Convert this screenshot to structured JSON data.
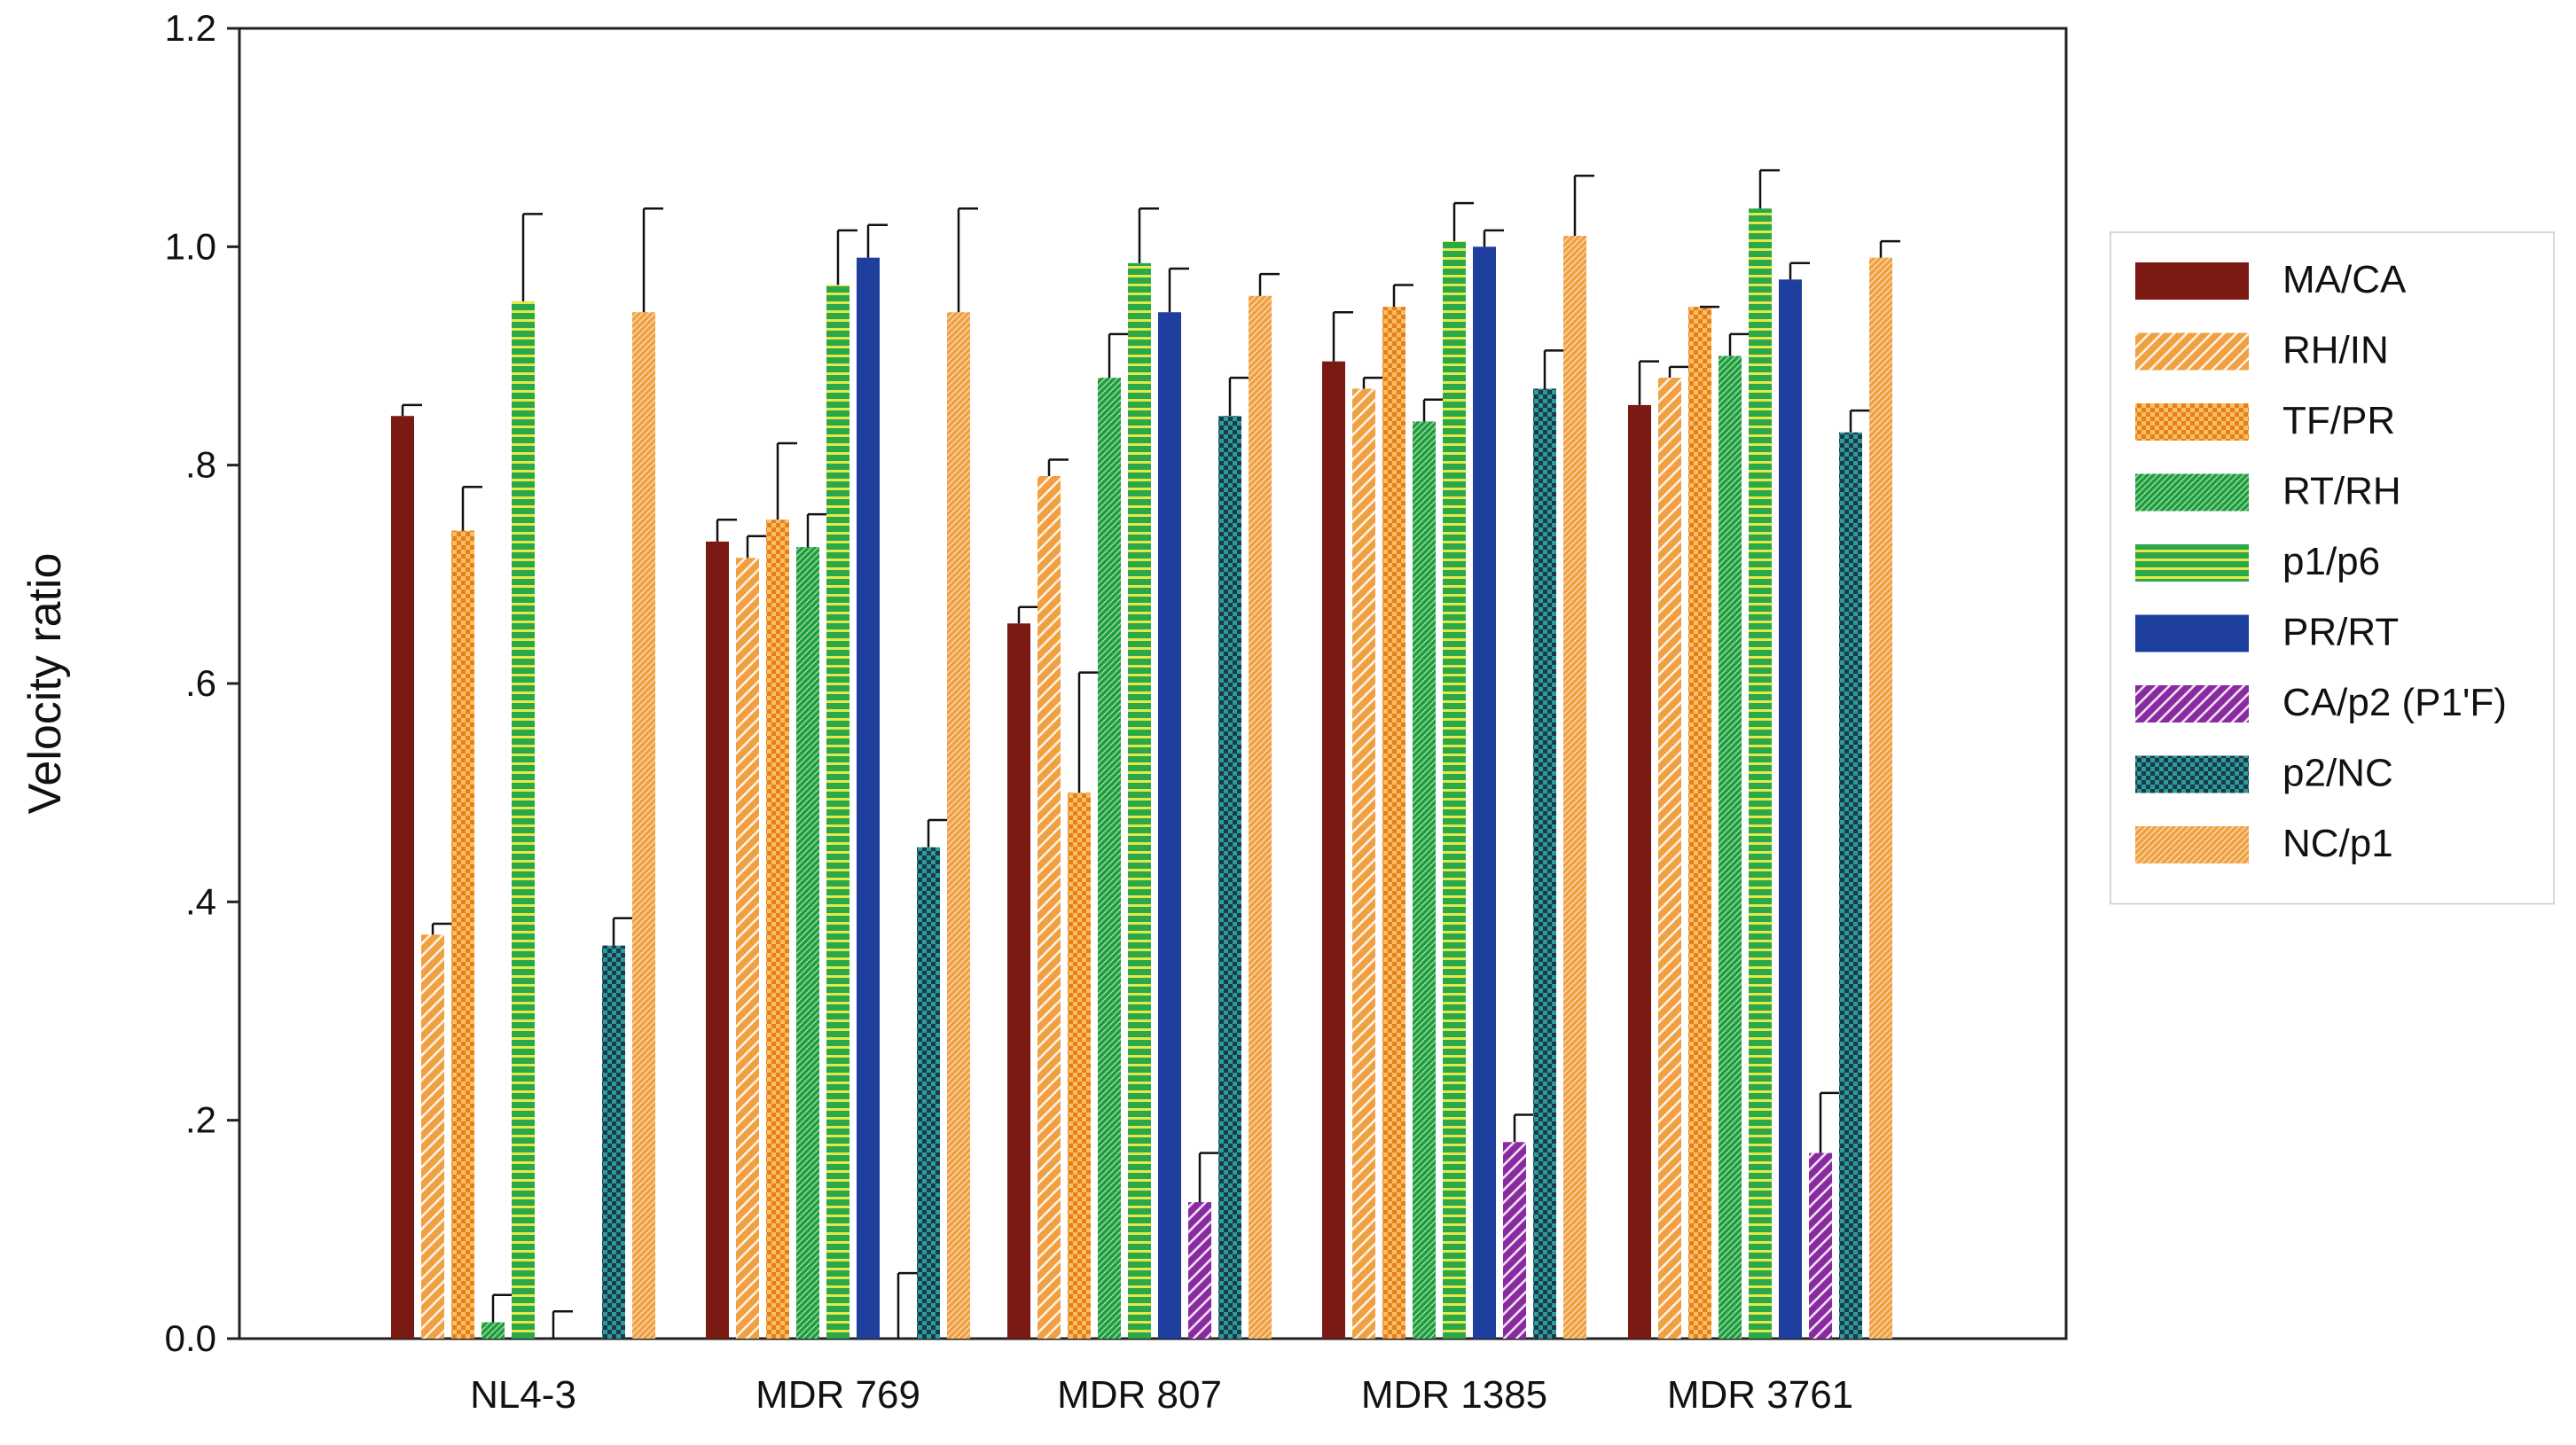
{
  "chart_data": {
    "type": "bar",
    "title": "",
    "xlabel": "",
    "ylabel": "Velocity ratio",
    "ylim": [
      0,
      1.2
    ],
    "yticks": [
      {
        "value": 0.0,
        "label": "0.0"
      },
      {
        "value": 0.2,
        "label": ".2"
      },
      {
        "value": 0.4,
        "label": ".4"
      },
      {
        "value": 0.6,
        "label": ".6"
      },
      {
        "value": 0.8,
        "label": ".8"
      },
      {
        "value": 1.0,
        "label": "1.0"
      },
      {
        "value": 1.2,
        "label": "1.2"
      }
    ],
    "categories": [
      "NL4-3",
      "MDR 769",
      "MDR 807",
      "MDR 1385",
      "MDR 3761"
    ],
    "legend_position": "right",
    "grid": false,
    "series": [
      {
        "name": "MA/CA",
        "color": "#7b1a12",
        "pattern": "solid",
        "values": [
          0.845,
          0.73,
          0.655,
          0.895,
          0.855
        ],
        "errors": [
          0.01,
          0.02,
          0.015,
          0.045,
          0.04
        ]
      },
      {
        "name": "RH/IN",
        "color": "#f0a040",
        "pattern": "diag-light",
        "values": [
          0.37,
          0.715,
          0.79,
          0.87,
          0.88
        ],
        "errors": [
          0.01,
          0.02,
          0.015,
          0.01,
          0.01
        ]
      },
      {
        "name": "TF/PR",
        "color": "#e87d1e",
        "pattern": "checker",
        "values": [
          0.74,
          0.75,
          0.5,
          0.945,
          0.945
        ],
        "errors": [
          0.04,
          0.07,
          0.11,
          0.02,
          0.0
        ]
      },
      {
        "name": "RT/RH",
        "color": "#1e9e3a",
        "pattern": "diag-dense",
        "values": [
          0.015,
          0.725,
          0.88,
          0.84,
          0.9
        ],
        "errors": [
          0.025,
          0.03,
          0.04,
          0.02,
          0.02
        ]
      },
      {
        "name": "p1/p6",
        "color": "#2aa84a",
        "pattern": "hstripe",
        "values": [
          0.95,
          0.965,
          0.985,
          1.005,
          1.035
        ],
        "errors": [
          0.08,
          0.05,
          0.05,
          0.035,
          0.035
        ]
      },
      {
        "name": "PR/RT",
        "color": "#1f3f9e",
        "pattern": "solid",
        "values": [
          0.0,
          0.99,
          0.94,
          1.0,
          0.97
        ],
        "errors": [
          0.025,
          0.03,
          0.04,
          0.015,
          0.015
        ]
      },
      {
        "name": "CA/p2 (P1'F)",
        "color": "#8a2aa0",
        "pattern": "diag-light",
        "values": [
          0.0,
          0.0,
          0.125,
          0.18,
          0.17
        ],
        "errors": [
          0.0,
          0.06,
          0.045,
          0.025,
          0.055
        ]
      },
      {
        "name": "p2/NC",
        "color": "#2a9c9a",
        "pattern": "checker-dark",
        "values": [
          0.36,
          0.45,
          0.845,
          0.87,
          0.83
        ],
        "errors": [
          0.025,
          0.025,
          0.035,
          0.035,
          0.02
        ]
      },
      {
        "name": "NC/p1",
        "color": "#f0a040",
        "pattern": "diag-dense",
        "values": [
          0.94,
          0.94,
          0.955,
          1.01,
          0.99
        ],
        "errors": [
          0.095,
          0.095,
          0.02,
          0.055,
          0.015
        ]
      }
    ]
  }
}
